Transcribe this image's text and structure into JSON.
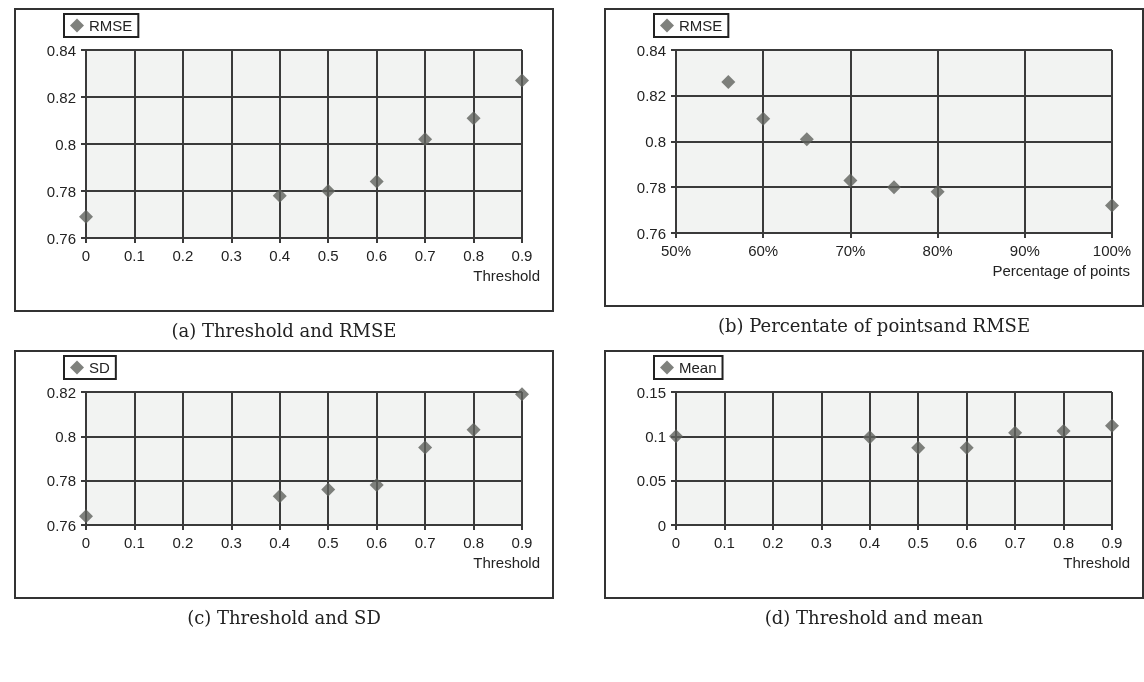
{
  "chart_data": [
    {
      "type": "scatter",
      "title": "(a) Threshold and RMSE",
      "xlabel": "Threshold",
      "x": [
        0,
        0.4,
        0.5,
        0.6,
        0.7,
        0.8,
        0.9
      ],
      "series": [
        {
          "name": "RMSE",
          "color": "#5f625d",
          "values": [
            0.769,
            0.778,
            0.78,
            0.784,
            0.802,
            0.811,
            0.827
          ]
        }
      ],
      "xlim": [
        0,
        0.9
      ],
      "xticks": [
        0,
        0.1,
        0.2,
        0.3,
        0.4,
        0.5,
        0.6,
        0.7,
        0.8,
        0.9
      ],
      "ylim": [
        0.76,
        0.84
      ],
      "yticks": [
        0.76,
        0.78,
        0.8,
        0.82,
        0.84
      ],
      "grid": true,
      "legend": "top left",
      "marker": "diamond"
    },
    {
      "type": "scatter",
      "title": "(b) Percentate of pointsand RMSE",
      "xlabel": "Percentage of points",
      "x": [
        56,
        60,
        65,
        70,
        75,
        80,
        100
      ],
      "series": [
        {
          "name": "RMSE",
          "color": "#5f625d",
          "values": [
            0.826,
            0.81,
            0.801,
            0.783,
            0.78,
            0.778,
            0.772
          ]
        }
      ],
      "xlim": [
        50,
        100
      ],
      "xticks": [
        {
          "value": 50,
          "label": "50%"
        },
        {
          "value": 60,
          "label": "60%"
        },
        {
          "value": 70,
          "label": "70%"
        },
        {
          "value": 80,
          "label": "80%"
        },
        {
          "value": 90,
          "label": "90%"
        },
        {
          "value": 100,
          "label": "100%"
        }
      ],
      "ylim": [
        0.76,
        0.84
      ],
      "yticks": [
        0.76,
        0.78,
        0.8,
        0.82,
        0.84
      ],
      "grid": true,
      "legend": "top left",
      "marker": "diamond"
    },
    {
      "type": "scatter",
      "title": "(c) Threshold and SD",
      "xlabel": "Threshold",
      "x": [
        0,
        0.4,
        0.5,
        0.6,
        0.7,
        0.8,
        0.9
      ],
      "series": [
        {
          "name": "SD",
          "color": "#5f625d",
          "values": [
            0.764,
            0.773,
            0.776,
            0.778,
            0.795,
            0.803,
            0.819
          ]
        }
      ],
      "xlim": [
        0,
        0.9
      ],
      "xticks": [
        0,
        0.1,
        0.2,
        0.3,
        0.4,
        0.5,
        0.6,
        0.7,
        0.8,
        0.9
      ],
      "ylim": [
        0.76,
        0.82
      ],
      "yticks": [
        0.76,
        0.78,
        0.8,
        0.82
      ],
      "grid": true,
      "legend": "top left",
      "marker": "diamond"
    },
    {
      "type": "scatter",
      "title": "(d) Threshold and mean",
      "xlabel": "Threshold",
      "x": [
        0,
        0.4,
        0.5,
        0.6,
        0.7,
        0.8,
        0.9
      ],
      "series": [
        {
          "name": "Mean",
          "color": "#5f625d",
          "values": [
            0.1,
            0.099,
            0.087,
            0.087,
            0.104,
            0.106,
            0.112
          ]
        }
      ],
      "xlim": [
        0,
        0.9
      ],
      "xticks": [
        0,
        0.1,
        0.2,
        0.3,
        0.4,
        0.5,
        0.6,
        0.7,
        0.8,
        0.9
      ],
      "ylim": [
        0,
        0.15
      ],
      "yticks": [
        0,
        0.05,
        0.1,
        0.15
      ],
      "grid": true,
      "legend": "top left",
      "marker": "diamond"
    }
  ]
}
